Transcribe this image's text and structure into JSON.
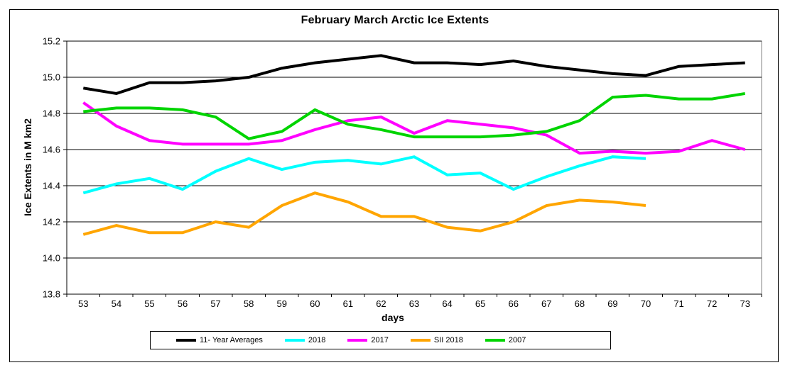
{
  "chart_data": {
    "type": "line",
    "title": "February March Arctic Ice Extents",
    "xlabel": "days",
    "ylabel": "Ice Extents in M km2",
    "x": [
      53,
      54,
      55,
      56,
      57,
      58,
      59,
      60,
      61,
      62,
      63,
      64,
      65,
      66,
      67,
      68,
      69,
      70,
      71,
      72,
      73
    ],
    "ylim": [
      13.8,
      15.2
    ],
    "yticks": [
      15.2,
      15.0,
      14.8,
      14.6,
      14.4,
      14.2,
      14.0,
      13.8
    ],
    "grid": "horizontal",
    "legend_position": "bottom-center",
    "series": [
      {
        "name": "11- Year Averages",
        "color": "#000000",
        "values": [
          14.94,
          14.91,
          14.97,
          14.97,
          14.98,
          15.0,
          15.05,
          15.08,
          15.1,
          15.12,
          15.08,
          15.08,
          15.07,
          15.09,
          15.06,
          15.04,
          15.02,
          15.01,
          15.06,
          15.07,
          15.08
        ]
      },
      {
        "name": "2018",
        "color": "#00FFFF",
        "values": [
          14.36,
          14.41,
          14.44,
          14.38,
          14.48,
          14.55,
          14.49,
          14.53,
          14.54,
          14.52,
          14.56,
          14.46,
          14.47,
          14.38,
          14.45,
          14.51,
          14.56,
          14.55,
          null,
          null,
          null
        ]
      },
      {
        "name": "2017",
        "color": "#FF00FF",
        "values": [
          14.86,
          14.73,
          14.65,
          14.63,
          14.63,
          14.63,
          14.65,
          14.71,
          14.76,
          14.78,
          14.69,
          14.76,
          14.74,
          14.72,
          14.68,
          14.58,
          14.59,
          14.58,
          14.59,
          14.65,
          14.6
        ]
      },
      {
        "name": "SII 2018",
        "color": "#FFA500",
        "values": [
          14.13,
          14.18,
          14.14,
          14.14,
          14.2,
          14.17,
          14.29,
          14.36,
          14.31,
          14.23,
          14.23,
          14.17,
          14.15,
          14.2,
          14.29,
          14.32,
          14.31,
          14.29,
          null,
          null,
          null
        ]
      },
      {
        "name": "2007",
        "color": "#00D400",
        "values": [
          14.81,
          14.83,
          14.83,
          14.82,
          14.78,
          14.66,
          14.7,
          14.82,
          14.74,
          14.71,
          14.67,
          14.67,
          14.67,
          14.68,
          14.7,
          14.76,
          14.89,
          14.9,
          14.88,
          14.88,
          14.91
        ]
      }
    ]
  },
  "colors": {
    "plot_border": "#808080",
    "axis": "#000000",
    "background": "#FFFFFF"
  }
}
